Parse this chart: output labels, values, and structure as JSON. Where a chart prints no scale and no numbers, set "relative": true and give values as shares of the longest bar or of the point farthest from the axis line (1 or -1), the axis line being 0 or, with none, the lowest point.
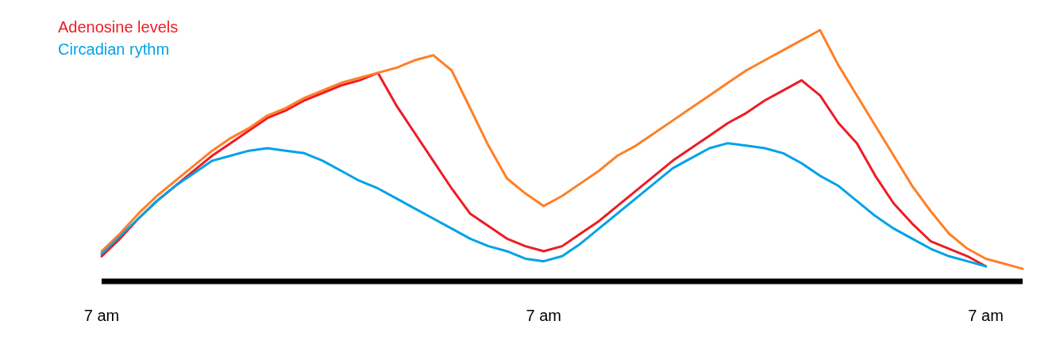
{
  "chart_data": {
    "type": "line",
    "relative": true,
    "marker": "none",
    "line_style": "solid",
    "categories": [
      "7 am",
      null,
      null,
      null,
      null,
      null,
      null,
      null,
      null,
      null,
      null,
      null,
      null,
      null,
      null,
      null,
      null,
      null,
      null,
      null,
      null,
      null,
      null,
      null,
      "7 am",
      null,
      null,
      null,
      null,
      null,
      null,
      null,
      null,
      null,
      null,
      null,
      null,
      null,
      null,
      null,
      null,
      null,
      null,
      null,
      null,
      null,
      null,
      null,
      "7 am",
      null,
      null
    ],
    "series": [
      {
        "name": "Adenosine levels",
        "color": "#ed1c24",
        "values": [
          0.1,
          0.17,
          0.25,
          0.32,
          0.38,
          0.44,
          0.5,
          0.55,
          0.6,
          0.65,
          0.68,
          0.72,
          0.75,
          0.78,
          0.8,
          0.83,
          0.7,
          0.59,
          0.48,
          0.37,
          0.27,
          0.22,
          0.17,
          0.14,
          0.12,
          0.14,
          0.19,
          0.24,
          0.3,
          0.36,
          0.42,
          0.48,
          0.53,
          0.58,
          0.63,
          0.67,
          0.72,
          0.76,
          0.8,
          0.74,
          0.63,
          0.55,
          0.42,
          0.31,
          0.23,
          0.16,
          0.13,
          0.1,
          0.06,
          null,
          null
        ]
      },
      {
        "name": "Circadian rythm",
        "color": "#00a2e8",
        "values": [
          0.11,
          0.18,
          0.25,
          0.32,
          0.38,
          0.43,
          0.48,
          0.5,
          0.52,
          0.53,
          0.52,
          0.51,
          0.48,
          0.44,
          0.4,
          0.37,
          0.33,
          0.29,
          0.25,
          0.21,
          0.17,
          0.14,
          0.12,
          0.09,
          0.08,
          0.1,
          0.15,
          0.21,
          0.27,
          0.33,
          0.39,
          0.45,
          0.49,
          0.53,
          0.55,
          0.54,
          0.53,
          0.51,
          0.47,
          0.42,
          0.38,
          0.32,
          0.26,
          0.21,
          0.17,
          0.13,
          0.1,
          0.08,
          0.06,
          null,
          null
        ]
      },
      {
        "color": "#ff7f27",
        "values": [
          0.12,
          0.19,
          0.27,
          0.34,
          0.4,
          0.46,
          0.52,
          0.57,
          0.61,
          0.66,
          0.69,
          0.73,
          0.76,
          0.79,
          0.81,
          0.83,
          0.85,
          0.88,
          0.9,
          0.84,
          0.69,
          0.54,
          0.41,
          0.35,
          0.3,
          0.34,
          0.39,
          0.44,
          0.5,
          0.54,
          0.59,
          0.64,
          0.69,
          0.74,
          0.79,
          0.84,
          0.88,
          0.92,
          0.96,
          1.0,
          0.86,
          0.74,
          0.62,
          0.5,
          0.38,
          0.28,
          0.19,
          0.13,
          0.09,
          0.07,
          0.05
        ]
      }
    ]
  }
}
